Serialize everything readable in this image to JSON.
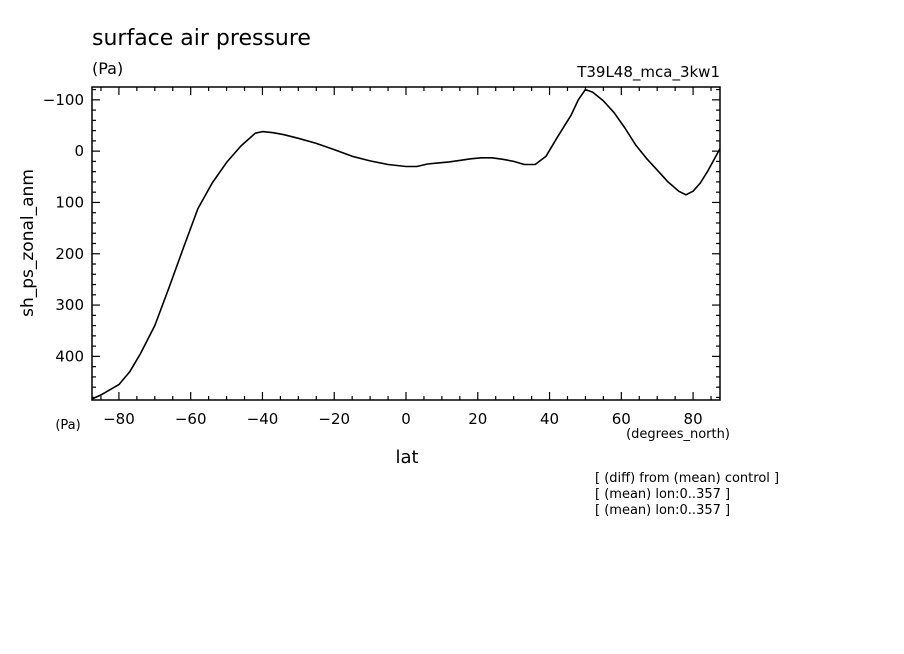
{
  "chart_data": {
    "type": "line",
    "title": "surface air pressure",
    "title_units": "(Pa)",
    "experiment": "T39L48_mca_3kw1",
    "ylabel": "sh_ps_zonal_anm",
    "y_units": "(Pa)",
    "xlabel": "lat",
    "x_units": "(degrees_north)",
    "notes": [
      "[ (diff) from (mean) control ]",
      "[ (mean) lon:0..357 ]",
      "[ (mean) lon:0..357 ]"
    ],
    "xlim": [
      -87.5,
      87.5
    ],
    "ylim": [
      -125,
      485
    ],
    "y_inverted": true,
    "x_ticks": [
      -80,
      -60,
      -40,
      -20,
      0,
      20,
      40,
      60,
      80
    ],
    "x_tick_labels": [
      "−80",
      "−60",
      "−40",
      "−20",
      "0",
      "20",
      "40",
      "60",
      "80"
    ],
    "y_ticks": [
      -100,
      0,
      100,
      200,
      300,
      400
    ],
    "y_tick_labels": [
      "−100",
      "0",
      "100",
      "200",
      "300",
      "400"
    ],
    "series": [
      {
        "x": [
          -87.5,
          -85,
          -80,
          -77,
          -74,
          -70,
          -66,
          -62,
          -58,
          -54,
          -50,
          -46,
          -42,
          -40,
          -37,
          -34,
          -30,
          -25,
          -20,
          -15,
          -10,
          -5,
          0,
          3,
          6,
          9,
          12,
          15,
          18,
          21,
          24,
          27,
          30,
          33,
          36,
          39,
          42,
          46,
          48,
          50,
          52,
          55,
          58,
          61,
          64,
          67,
          70,
          73,
          76,
          78,
          80,
          82,
          84,
          87.5
        ],
        "y": [
          483,
          475,
          455,
          430,
          395,
          340,
          265,
          188,
          112,
          62,
          22,
          -10,
          -35,
          -38,
          -36,
          -32,
          -25,
          -15,
          -3,
          10,
          19,
          26,
          30,
          30,
          25,
          23,
          21,
          18,
          15,
          13,
          13,
          16,
          20,
          26,
          26,
          10,
          -25,
          -70,
          -100,
          -120,
          -115,
          -98,
          -75,
          -45,
          -12,
          14,
          37,
          60,
          78,
          85,
          78,
          62,
          40,
          -5
        ]
      }
    ]
  }
}
